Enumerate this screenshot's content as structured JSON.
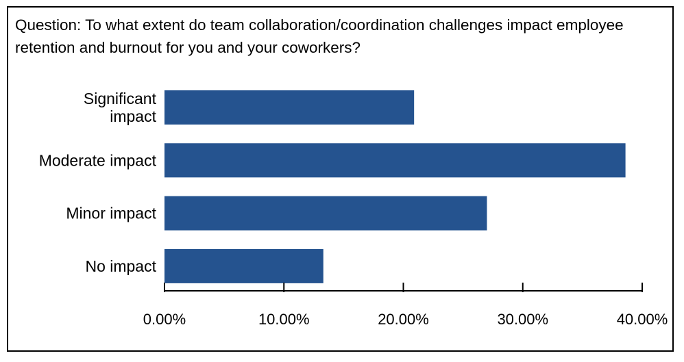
{
  "question": "Question: To what extent do team collaboration/coordination challenges impact employee retention and burnout for you and your coworkers?",
  "colors": {
    "bar": "#25538f",
    "axis": "#000000"
  },
  "chart_data": {
    "type": "bar",
    "orientation": "horizontal",
    "title": "Question: To what extent do team collaboration/coordination challenges impact employee retention and burnout for you and your coworkers?",
    "categories": [
      [
        "Significant",
        "impact"
      ],
      [
        "Moderate impact"
      ],
      [
        "Minor impact"
      ],
      [
        "No impact"
      ]
    ],
    "values": [
      20.9,
      38.6,
      27.0,
      13.3
    ],
    "xlim": [
      0,
      40
    ],
    "x_ticks": [
      0,
      10,
      20,
      30,
      40
    ],
    "x_tick_labels": [
      "0.00%",
      "10.00%",
      "20.00%",
      "30.00%",
      "40.00%"
    ],
    "xlabel": "",
    "ylabel": "",
    "grid": false,
    "legend": "none"
  }
}
